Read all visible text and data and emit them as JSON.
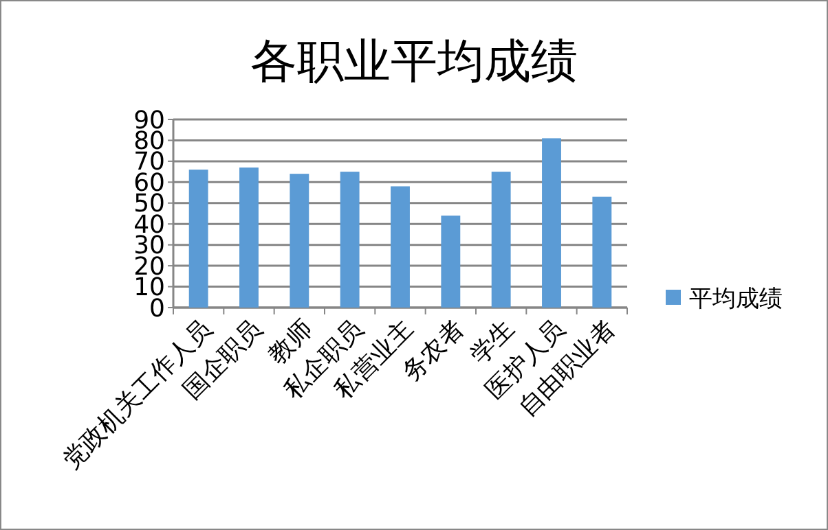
{
  "chart_data": {
    "type": "bar",
    "title": "各职业平均成绩",
    "categories": [
      "党政机关工作人员",
      "国企职员",
      "教师",
      "私企职员",
      "私营业主",
      "务农者",
      "学生",
      "医护人员",
      "自由职业者"
    ],
    "series": [
      {
        "name": "平均成绩",
        "color": "#5b9bd5",
        "values": [
          66,
          67,
          64,
          65,
          58,
          44,
          65,
          81,
          53
        ]
      }
    ],
    "ylim": [
      0,
      90
    ],
    "yticks": [
      0,
      10,
      20,
      30,
      40,
      50,
      60,
      70,
      80,
      90
    ],
    "grid": "y",
    "legend": "right"
  }
}
